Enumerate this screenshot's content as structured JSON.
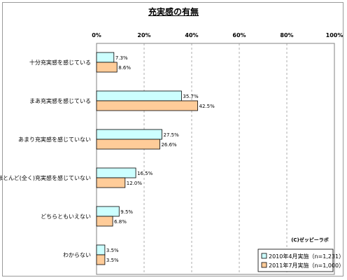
{
  "chart_data": {
    "type": "bar",
    "orientation": "horizontal",
    "title": "充実感の有無",
    "categories": [
      "十分充実感を感じている",
      "まあ充実感を感じている",
      "あまり充実感を感じていない",
      "ほとんど(全く)充実感を感じていない",
      "どちらともいえない",
      "わからない"
    ],
    "series": [
      {
        "name": "2010年4月実施（n=1,231）",
        "color": "#ccffff",
        "values": [
          7.3,
          35.7,
          27.5,
          16.5,
          9.5,
          3.5
        ],
        "labels": [
          "7.3%",
          "35.7%",
          "27.5%",
          "16.5%",
          "9.5%",
          "3.5%"
        ]
      },
      {
        "name": "2011年7月実施（n=1,000）",
        "color": "#ffcc99",
        "values": [
          8.6,
          42.5,
          26.6,
          12.0,
          6.8,
          3.5
        ],
        "labels": [
          "8.6%",
          "42.5%",
          "26.6%",
          "12.0%",
          "6.8%",
          "3.5%"
        ]
      }
    ],
    "xlim": [
      0,
      100
    ],
    "xticks": [
      "0%",
      "20%",
      "40%",
      "60%",
      "80%",
      "100%"
    ],
    "grid": true,
    "legend_position": "bottom-right",
    "credit": "(C)ゼッピーラボ"
  }
}
